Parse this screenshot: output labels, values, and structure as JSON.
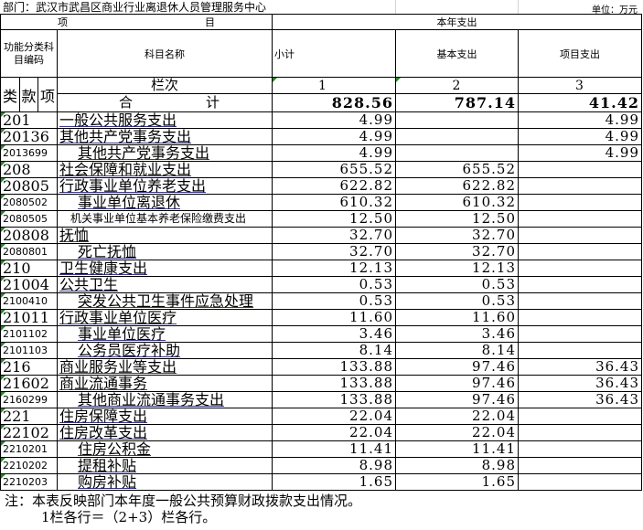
{
  "header": {
    "department": "部门：武汉市武昌区商业行业离退休人员管理服务中心",
    "unit": "单位：万元",
    "item_label_1": "项",
    "item_label_2": "目",
    "year_expense": "本年支出",
    "func_code": "功能分类科目编码",
    "subject_name": "科目名称",
    "subtotal": "小计",
    "basic": "基本支出",
    "project": "项目支出",
    "lei": "类",
    "kuan": "款",
    "xiang": "项",
    "column_index": "栏次",
    "col1": "1",
    "col2": "2",
    "col3": "3",
    "total_label_1": "合",
    "total_label_2": "计"
  },
  "total": {
    "subtotal": "828.56",
    "basic": "787.14",
    "project": "41.42"
  },
  "rows": [
    {
      "code": "201",
      "name": "一般公共服务支出",
      "subtotal": "4.99",
      "basic": "",
      "project": "4.99",
      "level": 1
    },
    {
      "code": "20136",
      "name": "其他共产党事务支出",
      "subtotal": "4.99",
      "basic": "",
      "project": "4.99",
      "level": 1
    },
    {
      "code": "2013699",
      "name": "其他共产党事务支出",
      "subtotal": "4.99",
      "basic": "",
      "project": "4.99",
      "level": 2
    },
    {
      "code": "208",
      "name": "社会保障和就业支出",
      "subtotal": "655.52",
      "basic": "655.52",
      "project": "",
      "level": 1
    },
    {
      "code": "20805",
      "name": "行政事业单位养老支出",
      "subtotal": "622.82",
      "basic": "622.82",
      "project": "",
      "level": 1
    },
    {
      "code": "2080502",
      "name": "事业单位离退休",
      "subtotal": "610.32",
      "basic": "610.32",
      "project": "",
      "level": 2
    },
    {
      "code": "2080505",
      "name": "机关事业单位基本养老保险缴费支出",
      "subtotal": "12.50",
      "basic": "12.50",
      "project": "",
      "level": 3
    },
    {
      "code": "20808",
      "name": "抚恤",
      "subtotal": "32.70",
      "basic": "32.70",
      "project": "",
      "level": 1
    },
    {
      "code": "2080801",
      "name": "死亡抚恤",
      "subtotal": "32.70",
      "basic": "32.70",
      "project": "",
      "level": 2
    },
    {
      "code": "210",
      "name": "卫生健康支出",
      "subtotal": "12.13",
      "basic": "12.13",
      "project": "",
      "level": 1
    },
    {
      "code": "21004",
      "name": "公共卫生",
      "subtotal": "0.53",
      "basic": "0.53",
      "project": "",
      "level": 1
    },
    {
      "code": "2100410",
      "name": "突发公共卫生事件应急处理",
      "subtotal": "0.53",
      "basic": "0.53",
      "project": "",
      "level": 2
    },
    {
      "code": "21011",
      "name": "行政事业单位医疗",
      "subtotal": "11.60",
      "basic": "11.60",
      "project": "",
      "level": 1
    },
    {
      "code": "2101102",
      "name": "事业单位医疗",
      "subtotal": "3.46",
      "basic": "3.46",
      "project": "",
      "level": 2
    },
    {
      "code": "2101103",
      "name": "公务员医疗补助",
      "subtotal": "8.14",
      "basic": "8.14",
      "project": "",
      "level": 2
    },
    {
      "code": "216",
      "name": "商业服务业等支出",
      "subtotal": "133.88",
      "basic": "97.46",
      "project": "36.43",
      "level": 1
    },
    {
      "code": "21602",
      "name": "商业流通事务",
      "subtotal": "133.88",
      "basic": "97.46",
      "project": "36.43",
      "level": 1
    },
    {
      "code": "2160299",
      "name": "其他商业流通事务支出",
      "subtotal": "133.88",
      "basic": "97.46",
      "project": "36.43",
      "level": 2
    },
    {
      "code": "221",
      "name": "住房保障支出",
      "subtotal": "22.04",
      "basic": "22.04",
      "project": "",
      "level": 1
    },
    {
      "code": "22102",
      "name": "住房改革支出",
      "subtotal": "22.04",
      "basic": "22.04",
      "project": "",
      "level": 1
    },
    {
      "code": "2210201",
      "name": "住房公积金",
      "subtotal": "11.41",
      "basic": "11.41",
      "project": "",
      "level": 2
    },
    {
      "code": "2210202",
      "name": "提租补贴",
      "subtotal": "8.98",
      "basic": "8.98",
      "project": "",
      "level": 2
    },
    {
      "code": "2210203",
      "name": "购房补贴",
      "subtotal": "1.65",
      "basic": "1.65",
      "project": "",
      "level": 2
    }
  ],
  "notes": {
    "line1": "注：本表反映部门本年度一般公共预算财政拨款支出情况。",
    "line2": "1栏各行＝（2+3）栏各行。"
  }
}
